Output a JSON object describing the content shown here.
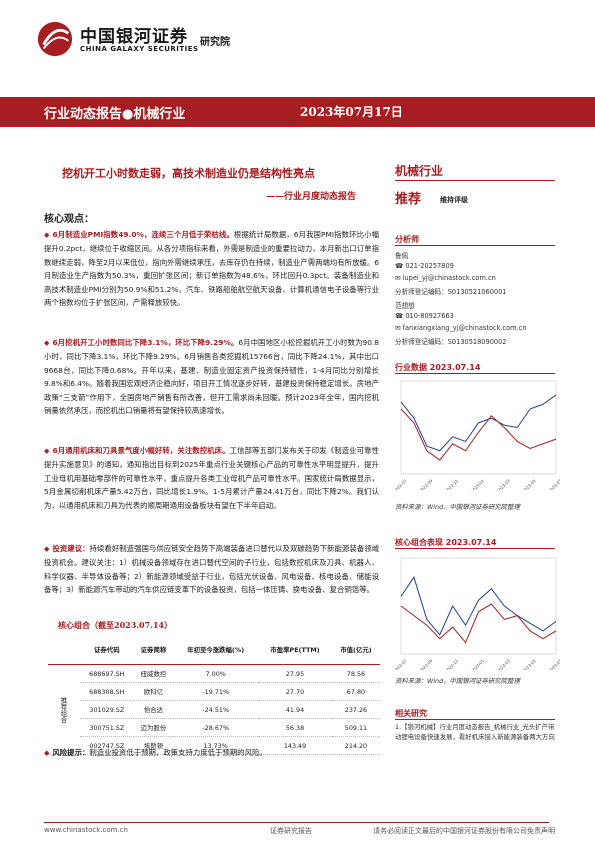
{
  "header": {
    "logo_cn": "中国银河证券",
    "logo_suffix": "研究院",
    "logo_en": "CHINA GALAXY SECURITIES"
  },
  "banner": {
    "left": "行业动态报告●机械行业",
    "right": "2023年07月17日"
  },
  "headline": "挖机开工小时数走弱，高技术制造业仍是结构性亮点",
  "subline": "——行业月度动态报告",
  "core": {
    "title": "核心观点：",
    "p1_hl": "6月制造业PMI指数49.0%，连续三个月低于荣枯线。",
    "p1_text": "根据统计局数据，6月我国PMI指数环比小幅提升0.2pct，继续位于收缩区间。从各分项指标来看，外需是制造业的重要拉动力，本月新出口订单指数继续走弱，降至2月以来低位，指向外需继续承压，去库存仍在持续，制造业产需两端均有所放缓。6月制造业生产指数为50.3%，重回扩张区间；新订单指数为48.6%，环比回升0.3pct。装备制造业和高技术制造业PMI分别为50.9%和51.2%，汽车、铁路船舶航空航天设备、计算机通信电子设备等行业两个指数均位于扩张区间，产需释放较快。",
    "p2_hl": "6月挖机开工小时数同比下降3.1%，环比下降9.29%。",
    "p2_text": "6月中国地区小松挖掘机开工小时数为90.8小时，同比下降3.1%，环比下降9.29%。6月销售各类挖掘机15766台，同比下降24.1%，其中出口9668台，同比下降0.68%。开年以来，基建、制造业固定资产投资保持韧性，1-4月同比分别增长9.8%和6.4%。随着我国宏观经济企稳向好，项目开工情况逐步好转，基建投资保持稳定增长。房地产政策“三支箭”作用下，全国房地产销售有所改善，但开工需求尚未回暖。预计2023年全年，国内挖机销量依然承压，而挖机出口销量将有望保持较高速增长。",
    "p3_hl": "6月通用机床和刀具景气度小幅好转，关注数控机床。",
    "p3_text": "工信部等五部门发布关于印发《制造业可靠性提升实施意见》的通知，通知指出目标到2025年重点行业关键核心产品的可靠性水平明显提升，提升工业母机用基础零部件的可靠性水平，重点提升各类工业母机产品可靠性水平。国家统计局数据显示，5月金属切削机床产量5.42万台，同比增长1.9%。1-5月累计产量24.41万台，同比下降2%。我们认为，以通用机床和刀具为代表的顺周期通用设备板块有望在下半年启动。",
    "p4_hl": "投资建议：",
    "p4_text": "持续看好制造强国与供应链安全趋势下高端装备进口替代以及双碳趋势下新能源装备领域投资机会。建议关注：1）机械设备领域存在进口替代空间的子行业，包括数控机床及刀具、机器人、科学仪器、半导体设备等；2）新能源领域受益于行业，包括光伏设备、风电设备、核电设备、储能设备等；3）新能源汽车带动的汽车供应链变革下的设备投资，包括一体压铸、换电设备、复合铜箔等。"
  },
  "table": {
    "title": "核心组合（截至2023.07.14）",
    "rec_label": "推荐组合",
    "headers": [
      "证券代码",
      "证券简称",
      "年初至今涨跌幅(%)",
      "市盈率PE(TTM)",
      "市值(亿元)"
    ],
    "rows": [
      [
        "688697.SH",
        "纽威数控",
        "7.00%",
        "27.95",
        "78.56"
      ],
      [
        "688308.SH",
        "欧科亿",
        "-19.71%",
        "27.70",
        "67.80"
      ],
      [
        "301029.SZ",
        "怡合达",
        "-24.51%",
        "41.94",
        "237.26"
      ],
      [
        "300751.SZ",
        "迈为股份",
        "-28.67%",
        "56.38",
        "509.11"
      ],
      [
        "002747.SZ",
        "埃斯顿",
        "13.73%",
        "143.49",
        "214.20"
      ]
    ]
  },
  "risk": {
    "label": "风险提示：",
    "text": "制造业投资低于预期，政策支持力度低于预期的风险。"
  },
  "side": {
    "sector": "机械行业",
    "rating": "推荐",
    "rating_note": "维持评级",
    "analyst_label": "分析师",
    "a1_name": "鲁佩",
    "a1_phone": "021-20257809",
    "a1_email": "lupei_yj@chinastock.com.cn",
    "a1_cert": "分析师登记编码：S0130521060001",
    "a2_name": "范想想",
    "a2_phone": "010-80927663",
    "a2_email": "fanxiangxiang_yj@chinastock.com.cn",
    "a2_cert": "分析师登记编码：S0130518090002",
    "chart1_title": "行业数据 2023.07.14",
    "chart1_src": "资料来源：Wind，中国银河证券研究院整理",
    "chart2_title": "核心组合表现 2023.07.14",
    "chart2_src": "资料来源：Wind，中国银河证券研究院整理",
    "related_title": "相关研究",
    "related_item": "1.【银河机械】行业月度动态报告_机械行业_光头扩产带动锂电设备快速发展，看好机床接入新能源装备两大方向"
  },
  "footer": {
    "url": "www.chinastock.com.cn",
    "mid": "证券研究报告",
    "right": "请务必阅读正文最后的中国银河证券股份有限公司免责声明"
  },
  "chart_data": [
    {
      "type": "line",
      "title": "行业数据 2023.07.14",
      "x": [
        "2022-07",
        "2022-08",
        "2022-09",
        "2022-10",
        "2022-11",
        "2022-12",
        "2023-01",
        "2023-02",
        "2023-03",
        "2023-04",
        "2023-05",
        "2023-06",
        "2023-07"
      ],
      "series": [
        {
          "values": [
            11,
            4,
            -8,
            -10,
            -4,
            -6,
            2,
            4,
            1,
            0,
            8,
            10,
            14
          ]
        },
        {
          "values": [
            8,
            2,
            -10,
            -14,
            -7,
            -10,
            -2,
            5,
            0,
            -6,
            -9,
            -7,
            -5
          ]
        }
      ],
      "ylim": [
        -20,
        20
      ]
    },
    {
      "type": "line",
      "title": "核心组合表现 2023.07.14",
      "x": [
        "2022-07",
        "2022-08",
        "2022-09",
        "2022-10",
        "2022-11",
        "2022-12",
        "2023-01",
        "2023-02",
        "2023-03",
        "2023-04",
        "2023-05",
        "2023-06",
        "2023-07"
      ],
      "series": [
        {
          "values": [
            10,
            20,
            -2,
            -10,
            5,
            -5,
            8,
            14,
            5,
            0,
            -4,
            -8,
            -3
          ]
        },
        {
          "values": [
            5,
            0,
            -5,
            -12,
            -6,
            -14,
            2,
            6,
            -2,
            0,
            -8,
            -12,
            -8
          ]
        }
      ],
      "ylim": [
        -20,
        30
      ]
    }
  ]
}
